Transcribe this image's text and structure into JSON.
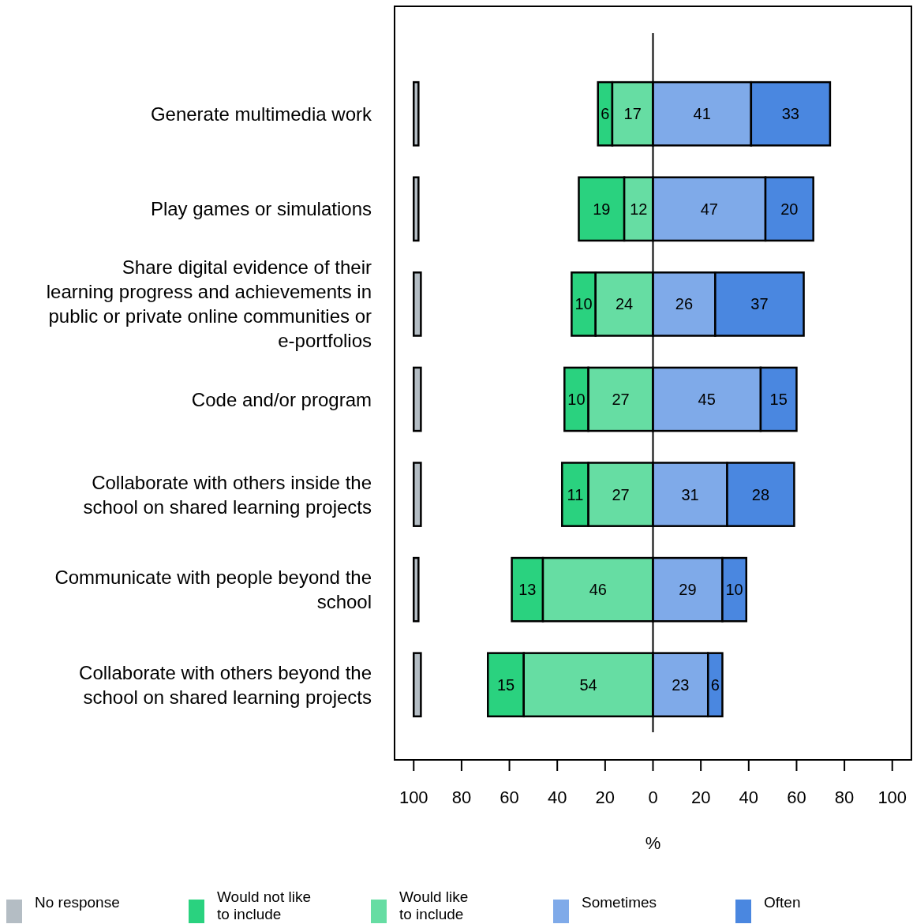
{
  "chart_data": {
    "type": "bar",
    "orientation": "horizontal",
    "xlabel": "%",
    "legend": "bottom",
    "grid": false,
    "categories": [
      "Generate multimedia work",
      "Play games or simulations",
      "Share digital evidence of their learning progress and achievements in public or private online communities or e-portfolios",
      "Code and/or program",
      "Collaborate with others inside the school on shared learning projects",
      "Communicate with people beyond the school",
      "Collaborate with others beyond the school on shared learning projects"
    ],
    "xlim": [
      -108,
      108
    ],
    "xticks": [
      {
        "value": -100,
        "label": "100"
      },
      {
        "value": -80,
        "label": "80"
      },
      {
        "value": -60,
        "label": "60"
      },
      {
        "value": -40,
        "label": "40"
      },
      {
        "value": -20,
        "label": "20"
      },
      0,
      20,
      40,
      60,
      80,
      100
    ],
    "ref_lines": [
      {
        "axis": "x",
        "value": 0,
        "color": "#000000"
      }
    ],
    "series": [
      {
        "name": "No response",
        "color": "#b4bdc4",
        "base": [
          -100,
          -100,
          -100,
          -100,
          -100,
          -100,
          -100
        ],
        "values": [
          2,
          2,
          3,
          3,
          3,
          2,
          3
        ]
      },
      {
        "name": "Would not like to include",
        "color": "#2ad27f",
        "base": [
          -23,
          -31,
          -34,
          -37,
          -38,
          -59,
          -69
        ],
        "values": [
          6,
          19,
          10,
          10,
          11,
          13,
          15
        ],
        "value_labels": [
          "6",
          "19",
          "10",
          "10",
          "11",
          "13",
          "15"
        ]
      },
      {
        "name": "Would like to include",
        "color": "#66dda3",
        "base": [
          -17,
          -12,
          -24,
          -27,
          -27,
          -46,
          -54
        ],
        "values": [
          17,
          12,
          24,
          27,
          27,
          46,
          54
        ],
        "value_labels": [
          "17",
          "12",
          "24",
          "27",
          "27",
          "46",
          "54"
        ]
      },
      {
        "name": "Sometimes",
        "color": "#7faae9",
        "base": [
          0,
          0,
          0,
          0,
          0,
          0,
          0
        ],
        "values": [
          41,
          47,
          26,
          45,
          31,
          29,
          23
        ],
        "value_labels": [
          "41",
          "47",
          "26",
          "45",
          "31",
          "29",
          "23"
        ]
      },
      {
        "name": "Often",
        "color": "#4a87e0",
        "base": [
          41,
          47,
          26,
          45,
          31,
          29,
          23
        ],
        "values": [
          33,
          20,
          37,
          15,
          28,
          10,
          6
        ],
        "value_labels": [
          "33",
          "20",
          "37",
          "15",
          "28",
          "10",
          "6"
        ]
      }
    ]
  }
}
